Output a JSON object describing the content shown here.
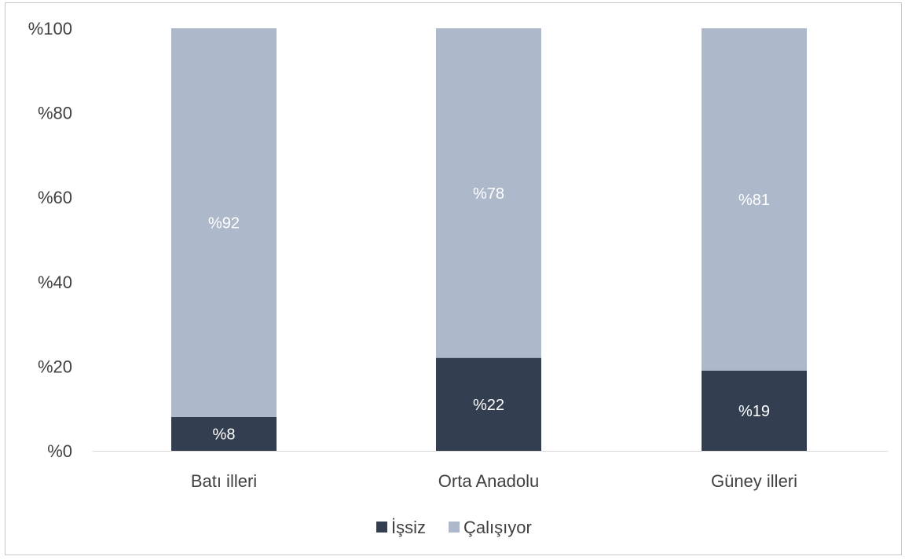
{
  "chart_data": {
    "type": "bar",
    "stacked": true,
    "categories": [
      "Batı illeri",
      "Orta Anadolu",
      "Güney illeri"
    ],
    "series": [
      {
        "name": "İşsiz",
        "values": [
          8,
          22,
          19
        ],
        "labels": [
          "%8",
          "%22",
          "%19"
        ],
        "color": "#333f50",
        "label_color": "#ffffff"
      },
      {
        "name": "Çalışıyor",
        "values": [
          92,
          78,
          81
        ],
        "labels": [
          "%92",
          "%78",
          "%81"
        ],
        "color": "#adb9ca",
        "label_color": "#ffffff"
      }
    ],
    "yticks": [
      "%0",
      "%20",
      "%40",
      "%60",
      "%80",
      "%100"
    ],
    "ylim": [
      0,
      100
    ],
    "title": "",
    "xlabel": "",
    "ylabel": "",
    "grid": false,
    "legend": "bottom-center",
    "axis_color": "#d9d9d9",
    "text_color": "#404040"
  }
}
